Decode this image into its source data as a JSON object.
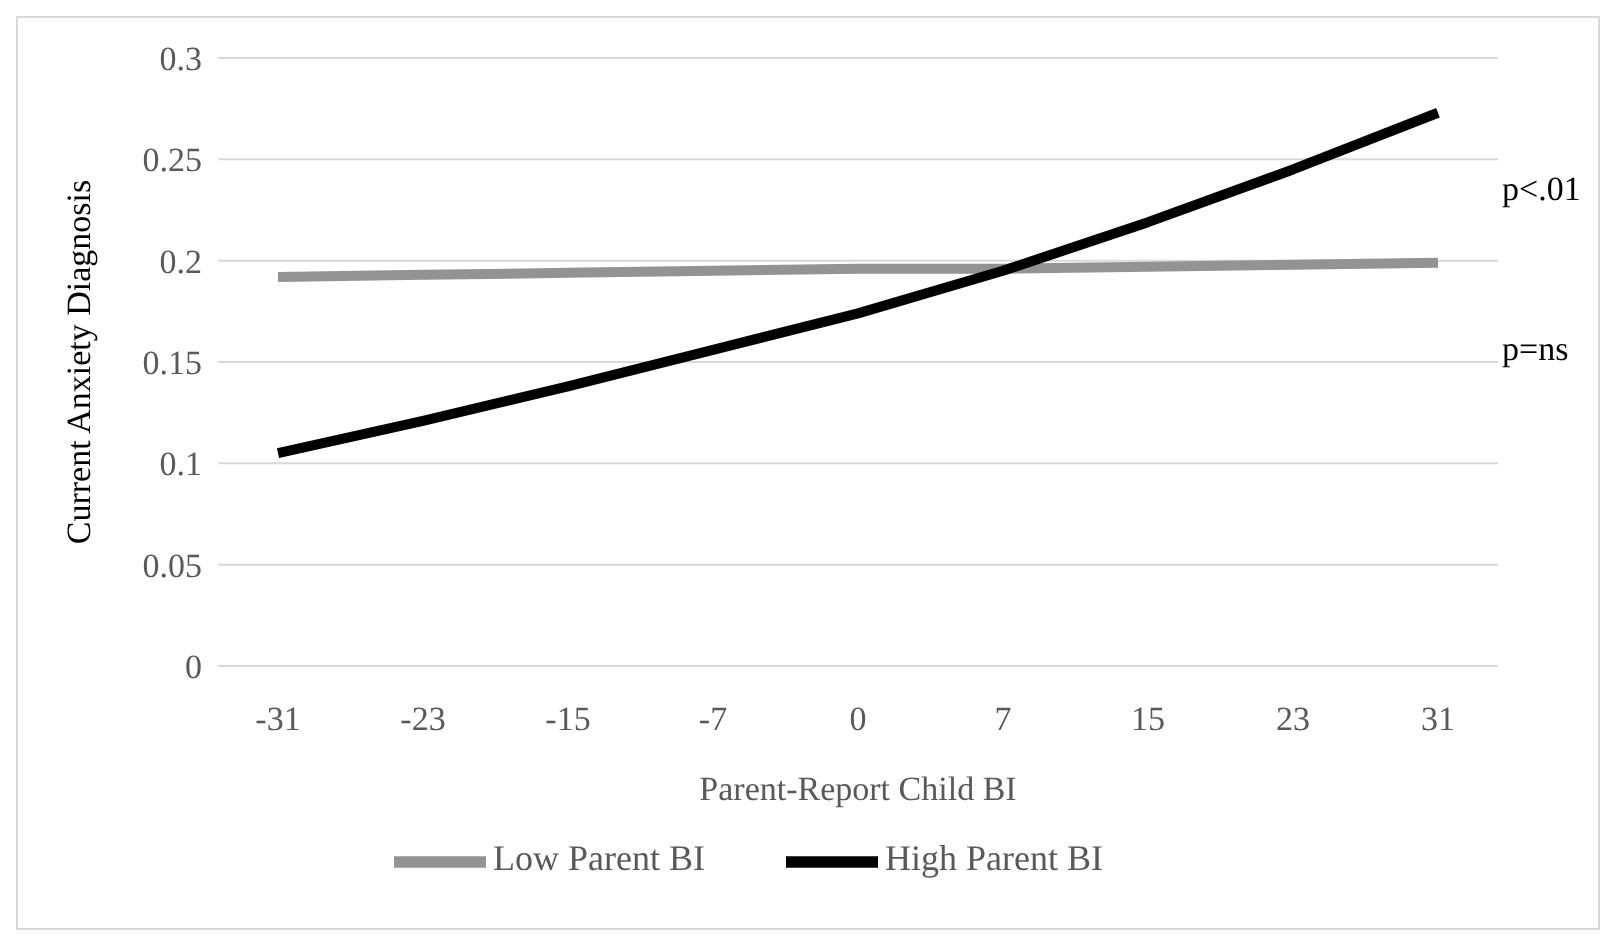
{
  "chart_data": {
    "type": "line",
    "xlabel": "Parent-Report Child BI",
    "ylabel": "Current Anxiety Diagnosis",
    "categories": [
      "-31",
      "-23",
      "-15",
      "-7",
      "0",
      "7",
      "15",
      "23",
      "31"
    ],
    "series": [
      {
        "name": "Low Parent BI",
        "color": "#939393",
        "values": [
          0.192,
          0.193,
          0.194,
          0.195,
          0.196,
          0.196,
          0.197,
          0.198,
          0.199
        ]
      },
      {
        "name": "High Parent BI",
        "color": "#000000",
        "values": [
          0.105,
          0.121,
          0.138,
          0.156,
          0.174,
          0.195,
          0.219,
          0.245,
          0.273
        ]
      }
    ],
    "ylim": [
      0,
      0.3
    ],
    "yticks": [
      0,
      0.05,
      0.1,
      0.15,
      0.2,
      0.25,
      0.3
    ],
    "annotations": [
      "p<.01",
      "p=ns"
    ],
    "grid": "y",
    "legend": "bottom",
    "marker": "none",
    "line_style": "solid"
  }
}
